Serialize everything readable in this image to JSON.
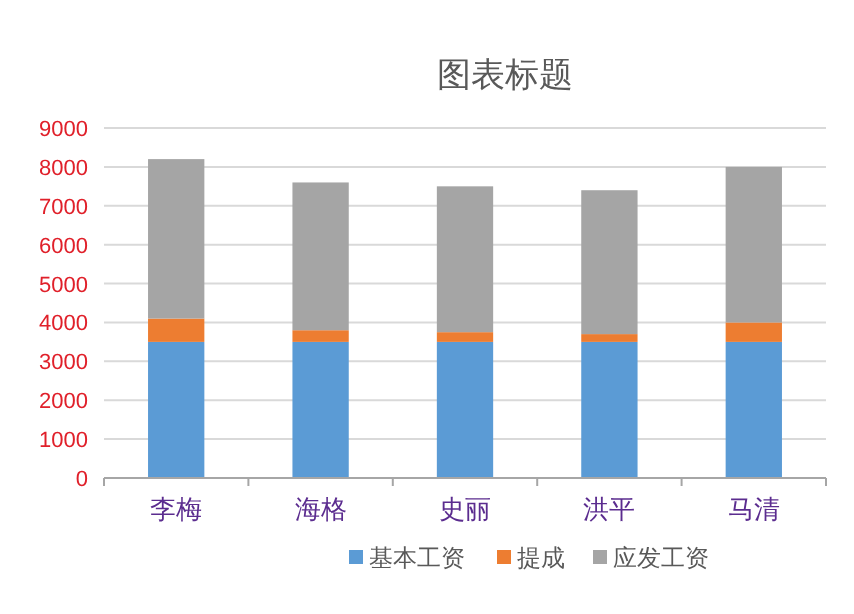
{
  "chart_data": {
    "type": "bar",
    "title": "图表标题",
    "stacked": true,
    "categories": [
      "李梅",
      "海格",
      "史丽",
      "洪平",
      "马清"
    ],
    "series": [
      {
        "name": "基本工资",
        "color": "#5b9bd5",
        "values": [
          3500,
          3500,
          3500,
          3500,
          3500
        ]
      },
      {
        "name": "提成",
        "color": "#ed7d31",
        "values": [
          600,
          300,
          250,
          200,
          500
        ]
      },
      {
        "name": "应发工资",
        "color": "#a5a5a5",
        "values": [
          4100,
          3800,
          3750,
          3700,
          4000
        ]
      }
    ],
    "ylim": [
      0,
      9000
    ],
    "yticks": [
      0,
      1000,
      2000,
      3000,
      4000,
      5000,
      6000,
      7000,
      8000,
      9000
    ],
    "grid": "y",
    "legend": "bottom"
  }
}
